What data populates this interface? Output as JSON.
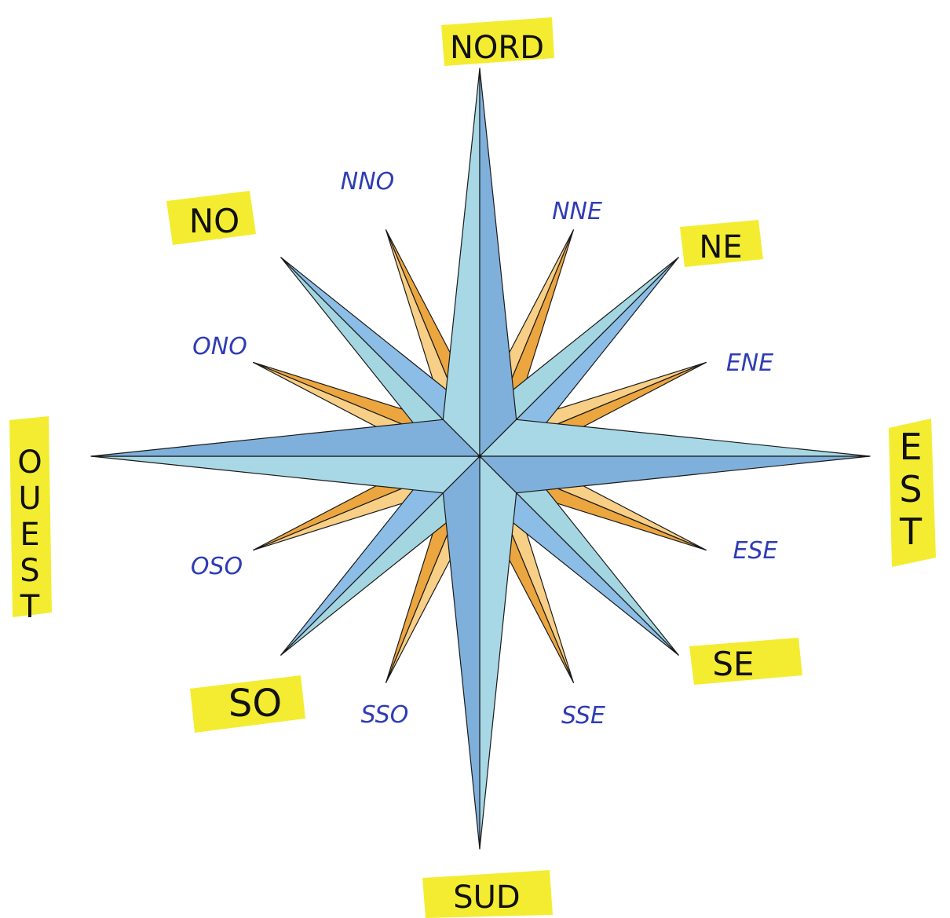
{
  "diagram": {
    "type": "compass-rose",
    "labels": {
      "north": "NORD",
      "south": "SUD",
      "east": "EST",
      "west": "OUEST",
      "northeast": "NE",
      "northwest": "NO",
      "southeast": "SE",
      "southwest": "SO",
      "nne": "NNE",
      "nno": "NNO",
      "ene": "ENE",
      "ese": "ESE",
      "ono": "ONO",
      "oso": "OSO",
      "sse": "SSE",
      "sso": "SSO"
    }
  },
  "colors": {
    "cardinal_light": "#a8d8e6",
    "cardinal_dark": "#7fb0dc",
    "intercardinal_light": "#a3d6e0",
    "intercardinal_dark": "#8cbde6",
    "minor_light": "#f7cf86",
    "minor_dark": "#eba640",
    "highlight": "#f3ea1e",
    "cardinal_text": "#111111",
    "minor_text": "#2f3cb5",
    "outline": "#1a1a1a"
  }
}
